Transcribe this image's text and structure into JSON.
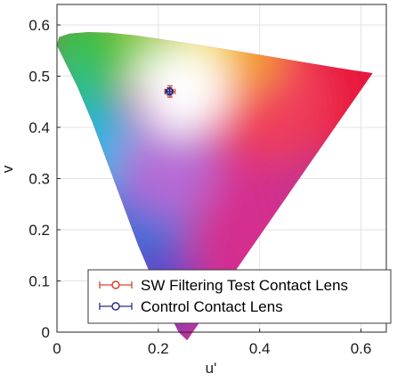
{
  "chart_data": {
    "type": "scatter",
    "title": "",
    "xlabel": "u'",
    "ylabel": "v",
    "xlim": [
      0,
      0.65
    ],
    "ylim": [
      0,
      0.64
    ],
    "xticks": [
      "0",
      "0.2",
      "0.4",
      "0.6"
    ],
    "xtick_values": [
      0,
      0.2,
      0.4,
      0.6
    ],
    "yticks": [
      "0",
      "0.1",
      "0.2",
      "0.3",
      "0.4",
      "0.5",
      "0.6"
    ],
    "ytick_values": [
      0,
      0.1,
      0.2,
      0.3,
      0.4,
      0.5,
      0.6
    ],
    "grid": true,
    "background": "CIE 1976 u'v' chromaticity diagram (spectral locus gamut)",
    "legend_position": "lower-right",
    "series": [
      {
        "name": "SW Filtering Test Contact Lens",
        "color": "#e0402a",
        "marker": "circle-open",
        "points": [
          {
            "x": 0.223,
            "y": 0.47,
            "xerr": 0.01,
            "yerr": 0.011
          }
        ]
      },
      {
        "name": "Control Contact Lens",
        "color": "#2b2f86",
        "marker": "circle-open",
        "points": [
          {
            "x": 0.222,
            "y": 0.47,
            "xerr": 0.007,
            "yerr": 0.007
          }
        ]
      }
    ]
  }
}
